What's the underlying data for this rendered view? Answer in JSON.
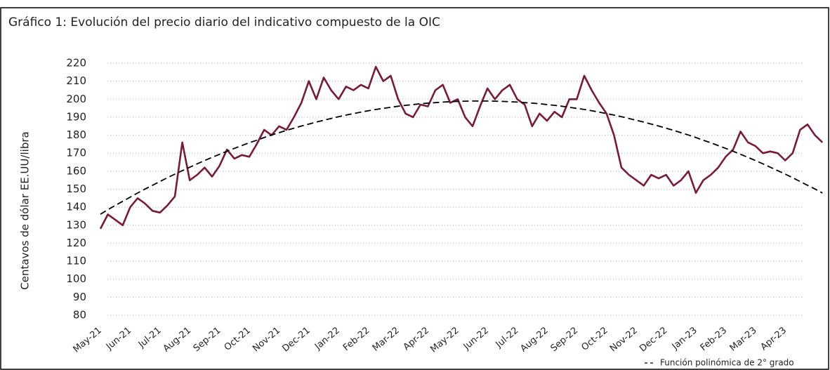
{
  "chart_data": {
    "type": "line",
    "title": "Gráfico 1: Evolución del precio diario del indicativo compuesto de la OIC",
    "y_label": "Centavos de dólar EE.UU/libra",
    "categories": [
      "May-21",
      null,
      null,
      null,
      "Jun-21",
      null,
      null,
      null,
      "Jul-21",
      null,
      null,
      null,
      "Aug-21",
      null,
      null,
      null,
      "Sep-21",
      null,
      null,
      null,
      "Oct-21",
      null,
      null,
      null,
      "Nov-21",
      null,
      null,
      null,
      "Dec-21",
      null,
      null,
      null,
      "Jan-22",
      null,
      null,
      null,
      "Feb-22",
      null,
      null,
      null,
      "Mar-22",
      null,
      null,
      null,
      "Apr-22",
      null,
      null,
      null,
      "May-22",
      null,
      null,
      null,
      "Jun-22",
      null,
      null,
      null,
      "Jul-22",
      null,
      null,
      null,
      "Aug-22",
      null,
      null,
      null,
      "Sep-22",
      null,
      null,
      null,
      "Oct-22",
      null,
      null,
      null,
      "Nov-22",
      null,
      null,
      null,
      "Dec-22",
      null,
      null,
      null,
      "Jan-23",
      null,
      null,
      null,
      "Feb-23",
      null,
      null,
      null,
      "Mar-23",
      null,
      null,
      null,
      "Apr-23",
      null,
      null,
      null,
      null,
      null
    ],
    "series": [
      {
        "color": "#7b1a35",
        "style": "solid",
        "values": [
          128,
          136,
          133,
          130,
          140,
          145,
          142,
          138,
          137,
          141,
          146,
          176,
          155,
          158,
          162,
          157,
          163,
          172,
          167,
          169,
          168,
          175,
          183,
          180,
          185,
          183,
          190,
          198,
          210,
          200,
          212,
          205,
          200,
          207,
          205,
          208,
          206,
          218,
          210,
          213,
          200,
          192,
          190,
          197,
          196,
          205,
          208,
          198,
          200,
          190,
          185,
          196,
          206,
          200,
          205,
          208,
          200,
          197,
          185,
          192,
          188,
          193,
          190,
          200,
          200,
          213,
          205,
          198,
          192,
          180,
          162,
          158,
          155,
          152,
          158,
          156,
          158,
          152,
          155,
          160,
          148,
          155,
          158,
          162,
          168,
          172,
          182,
          176,
          174,
          170,
          171,
          170,
          166,
          170,
          183,
          186,
          180,
          176
        ]
      },
      {
        "name": "Función polinómica de 2° grado",
        "color": "#000000",
        "style": "dashed",
        "values": [
          136.1,
          138.6,
          141.0,
          143.3,
          145.6,
          147.9,
          150.1,
          152.2,
          154.3,
          156.4,
          158.4,
          160.3,
          162.2,
          164.1,
          165.9,
          167.7,
          169.4,
          171.1,
          172.7,
          174.2,
          175.8,
          177.2,
          178.7,
          180.1,
          181.4,
          182.7,
          183.9,
          185.1,
          186.2,
          187.3,
          188.3,
          189.3,
          190.3,
          191.2,
          192.0,
          192.8,
          193.6,
          194.3,
          194.9,
          195.5,
          196.1,
          196.6,
          197.0,
          197.5,
          197.8,
          198.1,
          198.4,
          198.6,
          198.8,
          198.9,
          199.0,
          199.0,
          199.0,
          198.9,
          198.8,
          198.6,
          198.4,
          198.1,
          197.8,
          197.5,
          197.0,
          196.6,
          196.1,
          195.5,
          194.9,
          194.3,
          193.6,
          192.8,
          192.0,
          191.2,
          190.3,
          189.3,
          188.3,
          187.3,
          186.2,
          185.1,
          183.9,
          182.7,
          181.4,
          180.1,
          178.7,
          177.2,
          175.8,
          174.2,
          172.7,
          171.1,
          169.4,
          167.7,
          165.9,
          164.1,
          162.2,
          160.3,
          158.4,
          156.4,
          154.3,
          152.2,
          150.1,
          147.9
        ]
      }
    ],
    "ylim": [
      80,
      220
    ],
    "yticks": [
      80,
      90,
      100,
      110,
      120,
      130,
      140,
      150,
      160,
      170,
      180,
      190,
      200,
      210,
      220
    ],
    "grid": true,
    "legend": "bottom-right"
  }
}
